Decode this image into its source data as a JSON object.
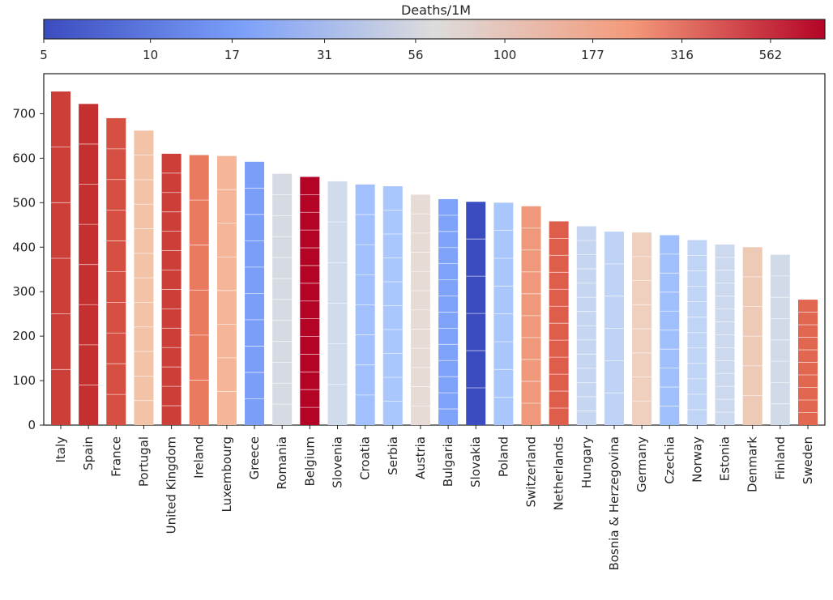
{
  "chart_data": {
    "type": "bar",
    "colorbar": {
      "title": "Deaths/1M",
      "scale": "log",
      "range": [
        5,
        800
      ],
      "ticks": [
        5,
        10,
        17,
        31,
        56,
        100,
        177,
        316,
        562
      ],
      "tick_labels": [
        "5",
        "10",
        "17",
        "31",
        "56",
        "100",
        "177",
        "316",
        "562"
      ],
      "colormap": "coolwarm"
    },
    "categories": [
      "Italy",
      "Spain",
      "France",
      "Portugal",
      "United Kingdom",
      "Ireland",
      "Luxembourg",
      "Greece",
      "Romania",
      "Belgium",
      "Slovenia",
      "Croatia",
      "Serbia",
      "Austria",
      "Bulgaria",
      "Slovakia",
      "Poland",
      "Switzerland",
      "Netherlands",
      "Hungary",
      "Bosnia & Herzegovina",
      "Germany",
      "Czechia",
      "Norway",
      "Estonia",
      "Denmark",
      "Finland",
      "Sweden"
    ],
    "values": [
      750,
      722,
      690,
      662,
      610,
      607,
      605,
      592,
      565,
      558,
      548,
      541,
      537,
      518,
      508,
      502,
      500,
      492,
      458,
      447,
      435,
      433,
      427,
      416,
      406,
      400,
      383,
      282
    ],
    "bar_colors": [
      "#cc3f39",
      "#c42f30",
      "#d55042",
      "#f2c3a7",
      "#cc3e38",
      "#e97a60",
      "#f4b599",
      "#7b9ff9",
      "#d6dbe3",
      "#b40426",
      "#d0dbec",
      "#a1c0fd",
      "#aac7fd",
      "#e6dbd5",
      "#80a3fa",
      "#3b4cc0",
      "#a9c6fd",
      "#ef987c",
      "#dd5f4b",
      "#c6d6f1",
      "#bfd3f6",
      "#efcfbd",
      "#a0bffd",
      "#c0d4f5",
      "#cbd8ee",
      "#edcab5",
      "#d1dae9",
      "#e16751"
    ],
    "ylim": [
      0,
      790
    ],
    "yticks": [
      0,
      100,
      200,
      300,
      400,
      500,
      600,
      700
    ],
    "xlabel": "",
    "ylabel": "",
    "grid": false,
    "legend": "none"
  }
}
